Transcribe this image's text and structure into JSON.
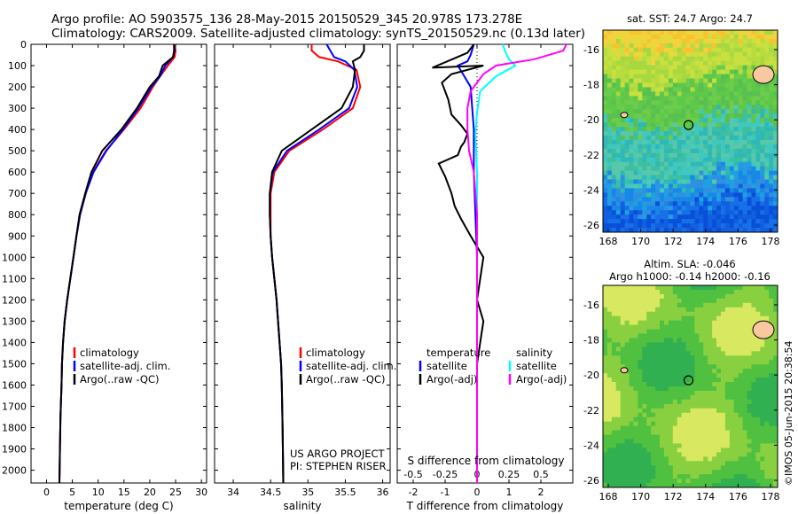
{
  "header": {
    "line1": "Argo profile: AO 5903575_136 28-May-2015 20150529_345 20.978S 173.278E",
    "line2": "Climatology: CARS2009. Satellite-adjusted climatology: synTS_20150529.nc (0.13d later)"
  },
  "colors": {
    "clim": "#ff0000",
    "sat": "#0000ff",
    "argo": "#000000",
    "salsat": "#00ffff",
    "salargo": "#ff00ff"
  },
  "depth_axis": {
    "ticks": [
      0,
      100,
      200,
      300,
      400,
      500,
      600,
      700,
      800,
      900,
      1000,
      1100,
      1200,
      1300,
      1400,
      1500,
      1600,
      1700,
      1800,
      1900,
      2000
    ],
    "range": [
      0,
      2060
    ]
  },
  "chart_data": [
    {
      "type": "line",
      "id": "temperature",
      "xlabel": "temperature (deg C)",
      "xlim": [
        -3,
        31
      ],
      "xticks": [
        0,
        5,
        10,
        15,
        20,
        25,
        30
      ],
      "legend": [
        "climatology",
        "satellite-adj. clim.",
        "Argo(..raw -QC)"
      ],
      "series": [
        {
          "name": "climatology",
          "color": "clim",
          "x": [
            24.8,
            25.0,
            24.8,
            23.5,
            22.0,
            20.6,
            18.2,
            15.0,
            11.5,
            9.0,
            7.6,
            6.5,
            5.8,
            5.2,
            4.6,
            4.0,
            3.5,
            3.2,
            3.0,
            2.9,
            2.7,
            2.6,
            2.5
          ],
          "y": [
            0,
            30,
            60,
            100,
            150,
            200,
            300,
            400,
            500,
            600,
            700,
            800,
            900,
            1000,
            1100,
            1200,
            1300,
            1400,
            1500,
            1600,
            1750,
            1900,
            2060
          ]
        },
        {
          "name": "satellite-adj. clim.",
          "color": "sat",
          "x": [
            24.7,
            24.8,
            24.5,
            23.0,
            22.0,
            20.3,
            17.8,
            14.8,
            11.6,
            9.1,
            7.6,
            6.5,
            5.8,
            5.2,
            4.6,
            4.0,
            3.5,
            3.2,
            3.0,
            2.9,
            2.7,
            2.6,
            2.5
          ],
          "y": [
            0,
            30,
            60,
            100,
            150,
            200,
            300,
            400,
            500,
            600,
            700,
            800,
            900,
            1000,
            1100,
            1200,
            1300,
            1400,
            1500,
            1600,
            1750,
            1900,
            2060
          ]
        },
        {
          "name": "Argo(..raw -QC)",
          "color": "argo",
          "x": [
            24.7,
            24.7,
            24.5,
            22.5,
            21.8,
            20.0,
            17.5,
            14.5,
            10.8,
            8.7,
            7.5,
            6.4,
            5.8,
            5.2,
            4.6,
            4.0,
            3.5,
            3.2,
            3.0,
            2.9,
            2.7,
            2.6,
            2.5
          ],
          "y": [
            0,
            30,
            60,
            100,
            150,
            200,
            300,
            400,
            500,
            600,
            700,
            800,
            900,
            1000,
            1100,
            1200,
            1300,
            1400,
            1500,
            1600,
            1750,
            1900,
            2060
          ]
        }
      ]
    },
    {
      "type": "line",
      "id": "salinity",
      "xlabel": "salinity",
      "xlim": [
        33.75,
        36.1
      ],
      "xticks": [
        34,
        34.5,
        35,
        35.5,
        36
      ],
      "legend": [
        "climatology",
        "satellite-adj. clim.",
        "Argo(..raw -QC)"
      ],
      "series": [
        {
          "name": "climatology",
          "color": "clim",
          "x": [
            35.05,
            35.05,
            35.15,
            35.4,
            35.65,
            35.7,
            35.6,
            35.2,
            34.75,
            34.55,
            34.5,
            34.5,
            34.5,
            34.52,
            34.55,
            34.58,
            34.6,
            34.62,
            34.64,
            34.65,
            34.66,
            34.67
          ],
          "y": [
            0,
            30,
            60,
            80,
            120,
            200,
            300,
            400,
            500,
            600,
            700,
            800,
            900,
            1000,
            1100,
            1200,
            1300,
            1400,
            1500,
            1600,
            1800,
            2060
          ]
        },
        {
          "name": "satellite-adj. clim.",
          "color": "sat",
          "x": [
            35.25,
            35.3,
            35.35,
            35.5,
            35.62,
            35.66,
            35.55,
            35.15,
            34.72,
            34.53,
            34.49,
            34.49,
            34.5,
            34.52,
            34.55,
            34.58,
            34.6,
            34.62,
            34.64,
            34.65,
            34.66,
            34.67
          ],
          "y": [
            0,
            30,
            60,
            80,
            120,
            200,
            300,
            400,
            500,
            600,
            700,
            800,
            900,
            1000,
            1100,
            1200,
            1300,
            1400,
            1500,
            1600,
            1800,
            2060
          ]
        },
        {
          "name": "Argo(..raw -QC)",
          "color": "argo",
          "x": [
            35.75,
            35.75,
            35.7,
            35.6,
            35.63,
            35.6,
            35.45,
            35.05,
            34.65,
            34.52,
            34.49,
            34.49,
            34.5,
            34.52,
            34.55,
            34.58,
            34.6,
            34.62,
            34.64,
            34.65,
            34.66,
            34.67
          ],
          "y": [
            0,
            30,
            60,
            80,
            120,
            200,
            300,
            400,
            500,
            600,
            700,
            800,
            900,
            1000,
            1100,
            1200,
            1300,
            1400,
            1500,
            1600,
            1800,
            2060
          ]
        }
      ],
      "annotation": [
        "US ARGO PROJECT",
        "PI: STEPHEN RISER"
      ]
    },
    {
      "type": "line",
      "id": "difference",
      "xlabel_top": "S difference from climatology",
      "xlabel": "T difference from climatology",
      "xlim": [
        -2.5,
        3.0
      ],
      "xticks": [
        -2,
        -1,
        0,
        1,
        2
      ],
      "s_ticks": [
        "-0.5",
        "-0.25",
        "0",
        "0.25",
        "0.5"
      ],
      "s_tick_positions_t_units": [
        -2,
        -1,
        0,
        1,
        2
      ],
      "legend_titles": [
        "temperature",
        "salinity"
      ],
      "legend": [
        "satellite",
        "Argo(-adj)",
        "satellite",
        "Argo(-adj)"
      ],
      "series": [
        {
          "name": "temperature satellite",
          "color": "sat",
          "x": [
            -0.1,
            -0.2,
            -0.3,
            -0.6,
            -0.2,
            -0.1,
            -0.1,
            -0.05,
            0,
            0,
            0,
            0
          ],
          "y": [
            0,
            50,
            80,
            100,
            200,
            400,
            600,
            800,
            1000,
            1200,
            1600,
            2060
          ]
        },
        {
          "name": "temperature Argo(-adj)",
          "color": "argo",
          "x": [
            -0.1,
            -0.3,
            -1.4,
            0.2,
            -0.8,
            -1.1,
            -0.9,
            -0.8,
            -0.5,
            -0.3,
            -0.4,
            -0.5,
            -0.6,
            -1.2,
            -1.0,
            -0.8,
            -0.7,
            -0.5,
            -0.2,
            0.2,
            0.1,
            0.0,
            0.2,
            0.0,
            0,
            0
          ],
          "y": [
            0,
            40,
            110,
            100,
            140,
            180,
            260,
            330,
            380,
            420,
            460,
            480,
            520,
            560,
            620,
            700,
            760,
            820,
            900,
            1000,
            1100,
            1200,
            1300,
            1500,
            1800,
            2060
          ]
        },
        {
          "name": "salinity satellite",
          "color": "salsat",
          "x": [
            0.8,
            0.9,
            1.0,
            1.2,
            0.6,
            0.1,
            0,
            -0.05,
            0,
            0,
            0,
            0
          ],
          "y": [
            0,
            40,
            70,
            100,
            150,
            220,
            320,
            420,
            600,
            900,
            1500,
            2060
          ]
        },
        {
          "name": "salinity Argo(-adj)",
          "color": "salargo",
          "x": [
            2.8,
            2.7,
            1.8,
            0.6,
            0.2,
            -0.2,
            -0.3,
            -0.3,
            -0.25,
            -0.1,
            0,
            0,
            0
          ],
          "y": [
            0,
            30,
            70,
            100,
            140,
            220,
            300,
            400,
            500,
            600,
            800,
            1200,
            2060
          ]
        }
      ]
    }
  ],
  "maps": [
    {
      "id": "sst",
      "title": "sat. SST: 24.7  Argo: 24.7",
      "lon_ticks": [
        "168",
        "170",
        "172",
        "174",
        "176",
        "178"
      ],
      "lat_ticks": [
        "-16",
        "-18",
        "-20",
        "-22",
        "-24",
        "-26"
      ],
      "type": "sst"
    },
    {
      "id": "sla",
      "title1": "Altim. SLA: -0.046",
      "title2": "Argo h1000: -0.14 h2000: -0.16",
      "lon_ticks": [
        "168",
        "170",
        "172",
        "174",
        "176",
        "178"
      ],
      "lat_ticks": [
        "-16",
        "-18",
        "-20",
        "-22",
        "-24",
        "-26"
      ],
      "type": "sla"
    }
  ],
  "credit": "©IMOS 05-Jun-2015 20:38:54"
}
